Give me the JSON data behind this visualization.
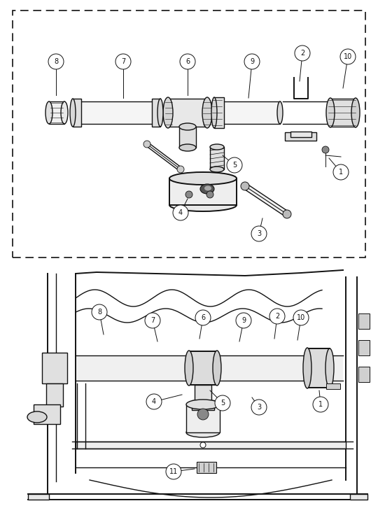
{
  "bg_color": "#ffffff",
  "lc": "#111111",
  "fig_w": 5.4,
  "fig_h": 7.36,
  "dpi": 100
}
